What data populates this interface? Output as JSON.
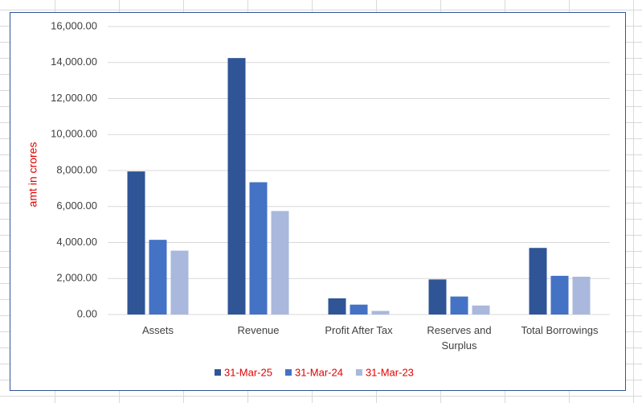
{
  "chart_data": {
    "type": "bar",
    "y_axis_label": "amt in crores",
    "categories": [
      "Assets",
      "Revenue",
      "Profit After Tax",
      "Reserves and Surplus",
      "Total Borrowings"
    ],
    "series": [
      {
        "name": "31-Mar-25",
        "color": "#2f5597",
        "values": [
          7950,
          14250,
          900,
          1950,
          3700
        ]
      },
      {
        "name": "31-Mar-24",
        "color": "#4472c4",
        "values": [
          4150,
          7350,
          550,
          1000,
          2150
        ]
      },
      {
        "name": "31-Mar-23",
        "color": "#a9b8dc",
        "values": [
          3550,
          5750,
          200,
          500,
          2100
        ]
      }
    ],
    "ylim": [
      0,
      16000
    ],
    "yticks": [
      {
        "value": 0,
        "label": "0.00"
      },
      {
        "value": 2000,
        "label": "2,000.00"
      },
      {
        "value": 4000,
        "label": "4,000.00"
      },
      {
        "value": 6000,
        "label": "6,000.00"
      },
      {
        "value": 8000,
        "label": "8,000.00"
      },
      {
        "value": 10000,
        "label": "10,000.00"
      },
      {
        "value": 12000,
        "label": "12,000.00"
      },
      {
        "value": 14000,
        "label": "14,000.00"
      },
      {
        "value": 16000,
        "label": "16,000.00"
      }
    ],
    "grid": true,
    "legend": "bottom"
  }
}
